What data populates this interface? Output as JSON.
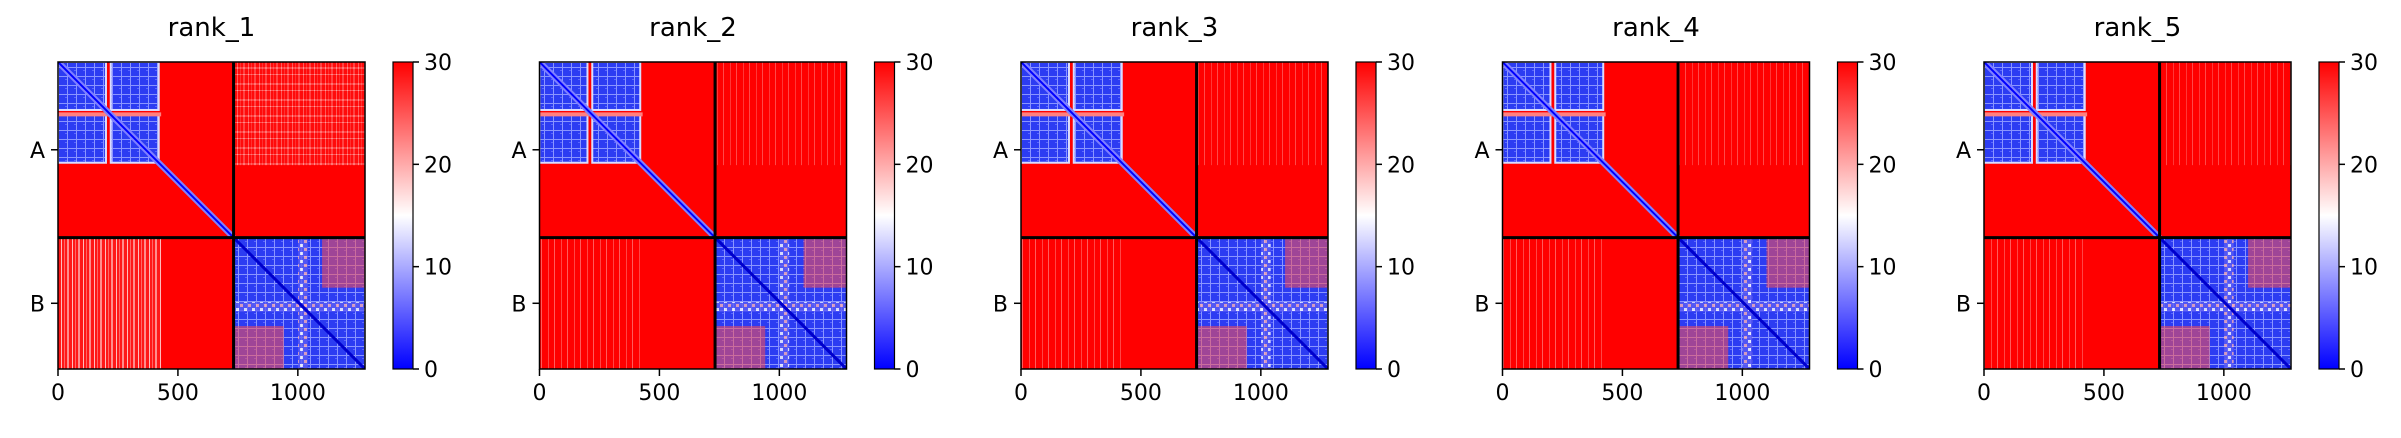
{
  "figure": {
    "panel_titles": [
      "rank_1",
      "rank_2",
      "rank_3",
      "rank_4",
      "rank_5"
    ],
    "colormap": {
      "low": "#0000ff",
      "mid": "#ffffff",
      "high": "#ff0000"
    },
    "chain_boundary_color": "#000000"
  },
  "chart_data": [
    {
      "type": "heatmap",
      "title": "rank_1",
      "x_ticks": [
        0,
        500,
        1000
      ],
      "xlim": [
        0,
        1280
      ],
      "y_tick_labels": [
        "A",
        "B"
      ],
      "chain_lengths": [
        732,
        548
      ],
      "chain_boundary": 732,
      "value_range": [
        0,
        30
      ],
      "colorbar_ticks": [
        0,
        10,
        20,
        30
      ],
      "blocks": {
        "A-A": "low within domains, 30 between domains",
        "A-B": "mostly 30 with lighter bands",
        "B-A": "mostly 30 with lighter bands",
        "B-B": "low, with moderate off-diagonal regions"
      }
    },
    {
      "type": "heatmap",
      "title": "rank_2",
      "x_ticks": [
        0,
        500,
        1000
      ],
      "xlim": [
        0,
        1280
      ],
      "y_tick_labels": [
        "A",
        "B"
      ],
      "chain_lengths": [
        732,
        548
      ],
      "chain_boundary": 732,
      "value_range": [
        0,
        30
      ],
      "colorbar_ticks": [
        0,
        10,
        20,
        30
      ],
      "blocks": {
        "A-A": "low within domains, 30 between domains",
        "A-B": "mostly 30 with faint bands",
        "B-A": "mostly 30 with faint bands",
        "B-B": "low, with moderate off-diagonal regions"
      }
    },
    {
      "type": "heatmap",
      "title": "rank_3",
      "x_ticks": [
        0,
        500,
        1000
      ],
      "xlim": [
        0,
        1280
      ],
      "y_tick_labels": [
        "A",
        "B"
      ],
      "chain_lengths": [
        732,
        548
      ],
      "chain_boundary": 732,
      "value_range": [
        0,
        30
      ],
      "colorbar_ticks": [
        0,
        10,
        20,
        30
      ],
      "blocks": {
        "A-A": "low within domains, 30 between domains",
        "A-B": "mostly 30 with faint bands",
        "B-A": "mostly 30 with faint bands",
        "B-B": "low, with moderate off-diagonal regions"
      }
    },
    {
      "type": "heatmap",
      "title": "rank_4",
      "x_ticks": [
        0,
        500,
        1000
      ],
      "xlim": [
        0,
        1280
      ],
      "y_tick_labels": [
        "A",
        "B"
      ],
      "chain_lengths": [
        732,
        548
      ],
      "chain_boundary": 732,
      "value_range": [
        0,
        30
      ],
      "colorbar_ticks": [
        0,
        10,
        20,
        30
      ],
      "blocks": {
        "A-A": "low within domains, 30 between domains",
        "A-B": "mostly 30 with faint bands",
        "B-A": "mostly 30 with faint bands",
        "B-B": "low, with moderate off-diagonal regions"
      }
    },
    {
      "type": "heatmap",
      "title": "rank_5",
      "x_ticks": [
        0,
        500,
        1000
      ],
      "xlim": [
        0,
        1280
      ],
      "y_tick_labels": [
        "A",
        "B"
      ],
      "chain_lengths": [
        732,
        548
      ],
      "chain_boundary": 732,
      "value_range": [
        0,
        30
      ],
      "colorbar_ticks": [
        0,
        10,
        20,
        30
      ],
      "blocks": {
        "A-A": "low within domains, 30 between domains",
        "A-B": "mostly 30 with faint bands",
        "B-A": "mostly 30 with faint bands",
        "B-B": "low, with moderate off-diagonal regions"
      }
    }
  ]
}
